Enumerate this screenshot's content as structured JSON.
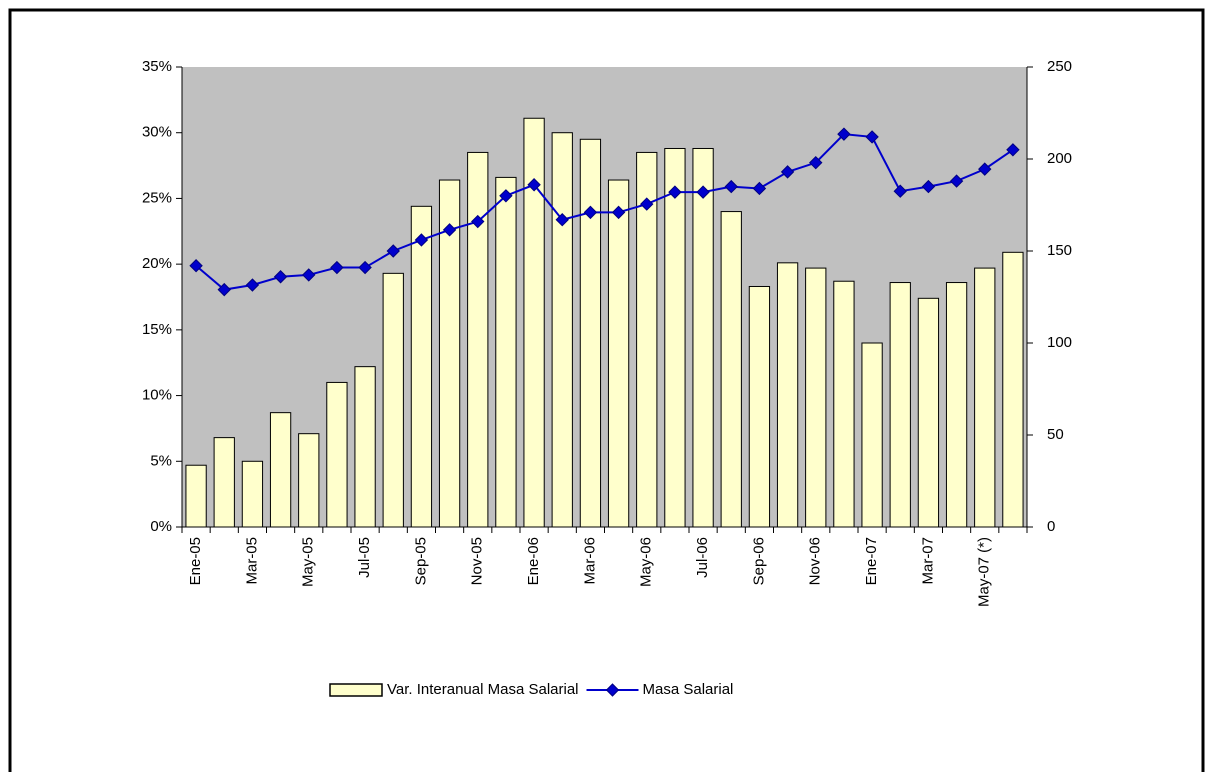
{
  "chart_data": {
    "type": "bar_line",
    "categories": [
      "Ene-05",
      null,
      "Mar-05",
      null,
      "May-05",
      null,
      "Jul-05",
      null,
      "Sep-05",
      null,
      "Nov-05",
      null,
      "Ene-06",
      null,
      "Mar-06",
      null,
      "May-06",
      null,
      "Jul-06",
      null,
      "Sep-06",
      null,
      "Nov-06",
      null,
      "Ene-07",
      null,
      "Mar-07",
      null,
      "May-07 (*)",
      null
    ],
    "series": [
      {
        "name": "Var. Interanual Masa Salarial",
        "type": "bar",
        "color": "#ffffcc",
        "axis": "y",
        "values": [
          4.7,
          6.8,
          5.0,
          8.7,
          7.1,
          11.0,
          12.2,
          19.3,
          24.4,
          26.4,
          28.5,
          26.6,
          31.1,
          30.0,
          29.5,
          26.4,
          28.5,
          28.8,
          28.8,
          24.0,
          18.3,
          20.1,
          19.7,
          18.7,
          14.0,
          18.6,
          17.4,
          18.6,
          19.7,
          20.9
        ]
      },
      {
        "name": "Masa Salarial",
        "type": "line",
        "color": "#0000cc",
        "axis": "y2",
        "values": [
          142,
          129,
          131.5,
          136,
          137,
          141,
          141,
          150,
          156,
          161.5,
          166,
          180,
          186,
          167,
          171,
          171,
          175.5,
          182,
          182,
          185,
          184,
          193,
          198,
          213.5,
          212,
          182.5,
          185,
          188,
          194.5,
          205
        ]
      }
    ],
    "ylim": [
      0,
      35
    ],
    "yticks": [
      {
        "value": 0,
        "label": "0%"
      },
      {
        "value": 5,
        "label": "5%"
      },
      {
        "value": 10,
        "label": "10%"
      },
      {
        "value": 15,
        "label": "15%"
      },
      {
        "value": 20,
        "label": "20%"
      },
      {
        "value": 25,
        "label": "25%"
      },
      {
        "value": 30,
        "label": "30%"
      },
      {
        "value": 35,
        "label": "35%"
      }
    ],
    "y2lim": [
      0,
      250
    ],
    "y2ticks": [
      0,
      50,
      100,
      150,
      200,
      250
    ],
    "plot_background": "#c0c0c0",
    "legend": "bottom"
  }
}
